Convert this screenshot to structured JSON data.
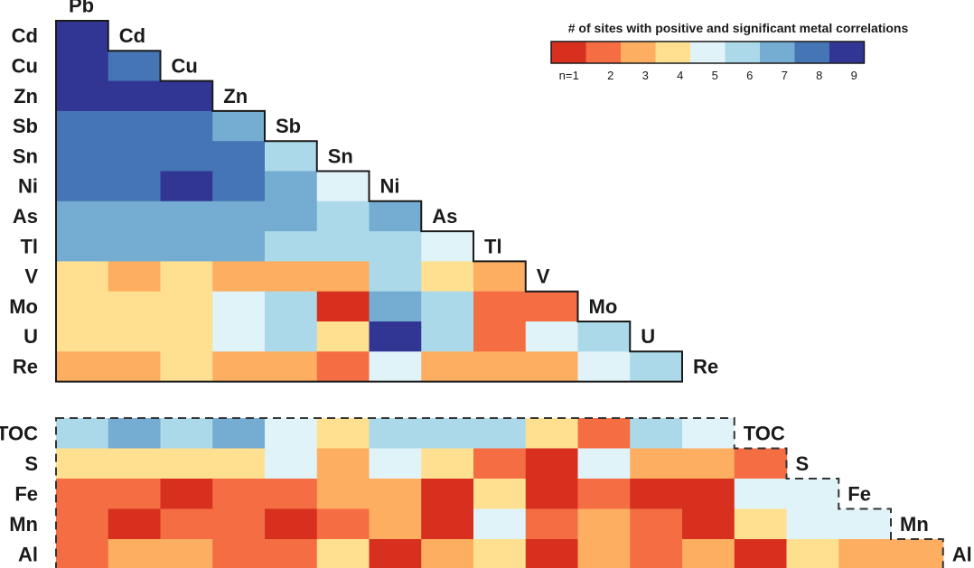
{
  "chart_data": {
    "type": "heatmap",
    "title": "# of sites with positive and significant metal correlations",
    "legend": {
      "prefix": "n=",
      "levels": [
        "1",
        "2",
        "3",
        "4",
        "5",
        "6",
        "7",
        "8",
        "9"
      ],
      "colors": [
        "#d7301f",
        "#f46d43",
        "#fdae61",
        "#fee090",
        "#e0f3f8",
        "#abd9e9",
        "#74add1",
        "#4575b4",
        "#313695"
      ]
    },
    "columns": [
      "Pb",
      "Cd",
      "Cu",
      "Zn",
      "Sb",
      "Sn",
      "Ni",
      "As",
      "Tl",
      "V",
      "Mo",
      "U",
      "Re",
      "TOC",
      "S",
      "Fe",
      "Mn",
      "Al"
    ],
    "metal_rows": [
      "Cd",
      "Cu",
      "Zn",
      "Sb",
      "Sn",
      "Ni",
      "As",
      "Tl",
      "V",
      "Mo",
      "U",
      "Re"
    ],
    "metal_values": [
      [
        9
      ],
      [
        9,
        8
      ],
      [
        9,
        9,
        9
      ],
      [
        8,
        8,
        8,
        7
      ],
      [
        8,
        8,
        8,
        8,
        6
      ],
      [
        8,
        8,
        9,
        8,
        7,
        5
      ],
      [
        7,
        7,
        7,
        7,
        7,
        6,
        7
      ],
      [
        7,
        7,
        7,
        7,
        6,
        6,
        6,
        5
      ],
      [
        4,
        3,
        4,
        3,
        3,
        3,
        6,
        4,
        3
      ],
      [
        4,
        4,
        4,
        5,
        6,
        1,
        7,
        6,
        2,
        2
      ],
      [
        4,
        4,
        4,
        5,
        6,
        4,
        9,
        6,
        2,
        5,
        6
      ],
      [
        3,
        3,
        4,
        3,
        3,
        2,
        5,
        3,
        3,
        3,
        5,
        6
      ]
    ],
    "env_rows": [
      "TOC",
      "S",
      "Fe",
      "Mn",
      "Al"
    ],
    "env_values": [
      [
        6,
        7,
        6,
        7,
        5,
        4,
        6,
        6,
        6,
        4,
        2,
        6,
        5
      ],
      [
        4,
        4,
        4,
        4,
        5,
        3,
        5,
        4,
        2,
        1,
        5,
        3,
        3,
        2
      ],
      [
        2,
        2,
        1,
        2,
        2,
        3,
        3,
        1,
        4,
        1,
        2,
        1,
        1,
        5,
        5
      ],
      [
        2,
        1,
        2,
        2,
        1,
        2,
        3,
        1,
        5,
        2,
        3,
        2,
        1,
        4,
        5,
        5
      ],
      [
        2,
        3,
        3,
        2,
        2,
        4,
        1,
        3,
        4,
        1,
        3,
        2,
        3,
        1,
        4,
        3,
        3
      ]
    ]
  }
}
